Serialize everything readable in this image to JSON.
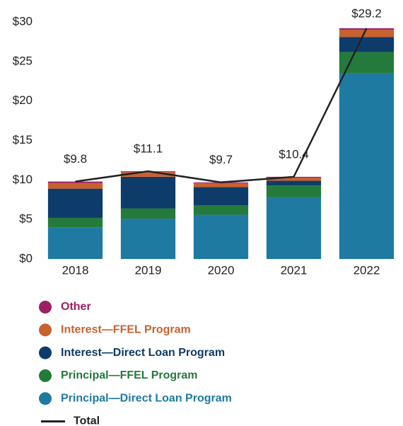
{
  "chart_data": {
    "type": "bar",
    "stacked": true,
    "categories": [
      "2018",
      "2019",
      "2020",
      "2021",
      "2022"
    ],
    "series": [
      {
        "name": "Principal—Direct Loan Program",
        "color": "#1f7aa2",
        "values": [
          4.0,
          5.1,
          5.6,
          7.8,
          23.5
        ]
      },
      {
        "name": "Principal—FFEL Program",
        "color": "#247a3a",
        "values": [
          1.2,
          1.3,
          1.2,
          1.5,
          2.7
        ]
      },
      {
        "name": "Interest—Direct Loan Program",
        "color": "#0d3c6b",
        "values": [
          3.7,
          4.0,
          2.3,
          0.6,
          1.9
        ]
      },
      {
        "name": "Interest—FFEL Program",
        "color": "#c9612d",
        "values": [
          0.7,
          0.6,
          0.5,
          0.4,
          0.9
        ]
      },
      {
        "name": "Other",
        "color": "#9c1f63",
        "values": [
          0.2,
          0.1,
          0.1,
          0.1,
          0.2
        ]
      }
    ],
    "line_series": {
      "name": "Total",
      "type": "line",
      "color": "#222222",
      "values": [
        9.8,
        11.1,
        9.7,
        10.4,
        29.2
      ],
      "value_labels": [
        "$9.8",
        "$11.1",
        "$9.7",
        "$10.4",
        "$29.2"
      ]
    },
    "ylim": [
      0,
      30
    ],
    "yticks": [
      {
        "value": 0,
        "label": "$0"
      },
      {
        "value": 5,
        "label": "$5"
      },
      {
        "value": 10,
        "label": "$10"
      },
      {
        "value": 15,
        "label": "$15"
      },
      {
        "value": 20,
        "label": "$20"
      },
      {
        "value": 25,
        "label": "$25"
      },
      {
        "value": 30,
        "label": "$30"
      }
    ],
    "grid": false
  }
}
